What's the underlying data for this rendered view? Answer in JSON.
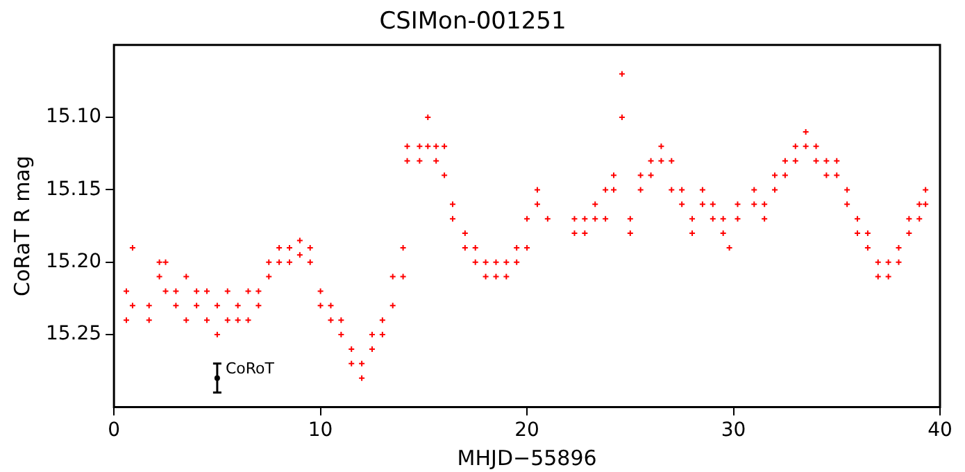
{
  "chart_data": {
    "type": "scatter",
    "title": "CSIMon-001251",
    "xlabel": "MHJD−55896",
    "ylabel": "CoRaT R mag",
    "xlim": [
      0,
      40
    ],
    "xticks": [
      0,
      10,
      20,
      30,
      40
    ],
    "ylim": [
      15.3,
      15.05
    ],
    "yticks": [
      {
        "value": 15.1,
        "label": "15.10"
      },
      {
        "value": 15.15,
        "label": "15.15"
      },
      {
        "value": 15.2,
        "label": "15.20"
      },
      {
        "value": 15.25,
        "label": "15.25"
      }
    ],
    "marker": "cross",
    "grid": false,
    "legend": false,
    "series": [
      {
        "color": "#ff0000",
        "x": [
          0.6,
          0.6,
          0.9,
          0.9,
          1.7,
          1.7,
          2.2,
          2.2,
          2.5,
          2.5,
          3,
          3,
          3.5,
          3.5,
          4,
          4,
          4.5,
          4.5,
          5,
          5,
          5.5,
          5.5,
          6,
          6,
          6.5,
          6.5,
          7,
          7,
          7.5,
          7.5,
          8,
          8,
          8.5,
          8.5,
          9,
          9,
          9.5,
          9.5,
          10,
          10,
          10.5,
          10.5,
          11,
          11,
          11.5,
          11.5,
          12,
          12,
          12.5,
          12.5,
          13,
          13,
          13.5,
          13.5,
          14,
          14,
          14.2,
          14.2,
          14.8,
          14.8,
          15.2,
          15.2,
          15.6,
          15.6,
          16,
          16,
          16.4,
          16.4,
          17,
          17,
          17.5,
          17.5,
          18,
          18,
          18.5,
          18.5,
          19,
          19,
          19.5,
          19.5,
          20,
          20,
          20.5,
          20.5,
          21,
          22.3,
          22.3,
          22.8,
          22.8,
          23.3,
          23.3,
          23.8,
          23.8,
          24.2,
          24.2,
          24.6,
          24.6,
          25,
          25,
          25.5,
          25.5,
          26,
          26,
          26.5,
          26.5,
          27,
          27,
          27.5,
          27.5,
          28,
          28,
          28.5,
          28.5,
          29,
          29,
          29.5,
          29.5,
          29.8,
          30.2,
          30.2,
          31,
          31,
          31.5,
          31.5,
          32,
          32,
          32.5,
          32.5,
          33,
          33,
          33.5,
          33.5,
          34,
          34,
          34.5,
          34.5,
          35,
          35,
          35.5,
          35.5,
          36,
          36,
          36.5,
          36.5,
          37,
          37,
          37.5,
          37.5,
          38,
          38,
          38.5,
          38.5,
          39,
          39,
          39.3,
          39.3
        ],
        "values": [
          15.22,
          15.24,
          15.19,
          15.23,
          15.23,
          15.24,
          15.21,
          15.2,
          15.2,
          15.22,
          15.22,
          15.23,
          15.21,
          15.24,
          15.23,
          15.22,
          15.24,
          15.22,
          15.23,
          15.25,
          15.24,
          15.22,
          15.23,
          15.24,
          15.22,
          15.24,
          15.22,
          15.23,
          15.2,
          15.21,
          15.2,
          15.19,
          15.19,
          15.2,
          15.185,
          15.195,
          15.2,
          15.19,
          15.22,
          15.23,
          15.24,
          15.23,
          15.25,
          15.24,
          15.26,
          15.27,
          15.28,
          15.27,
          15.26,
          15.25,
          15.25,
          15.24,
          15.23,
          15.21,
          15.21,
          15.19,
          15.13,
          15.12,
          15.12,
          15.13,
          15.1,
          15.12,
          15.12,
          15.13,
          15.12,
          15.14,
          15.16,
          15.17,
          15.18,
          15.19,
          15.19,
          15.2,
          15.2,
          15.21,
          15.21,
          15.2,
          15.21,
          15.2,
          15.2,
          15.19,
          15.19,
          15.17,
          15.16,
          15.15,
          15.17,
          15.18,
          15.17,
          15.17,
          15.18,
          15.16,
          15.17,
          15.15,
          15.17,
          15.15,
          15.14,
          15.07,
          15.1,
          15.17,
          15.18,
          15.14,
          15.15,
          15.13,
          15.14,
          15.12,
          15.13,
          15.13,
          15.15,
          15.15,
          15.16,
          15.17,
          15.18,
          15.15,
          15.16,
          15.16,
          15.17,
          15.18,
          15.17,
          15.19,
          15.16,
          15.17,
          15.16,
          15.15,
          15.17,
          15.16,
          15.15,
          15.14,
          15.13,
          15.14,
          15.12,
          15.13,
          15.11,
          15.12,
          15.12,
          15.13,
          15.13,
          15.14,
          15.14,
          15.13,
          15.15,
          15.16,
          15.17,
          15.18,
          15.19,
          15.18,
          15.2,
          15.21,
          15.21,
          15.2,
          15.2,
          15.19,
          15.18,
          15.17,
          15.16,
          15.17,
          15.15,
          15.16
        ]
      },
      {
        "name": "CoRoT",
        "color": "#000000",
        "marker": "circle",
        "x": [
          5
        ],
        "values": [
          15.28
        ],
        "errors": [
          0.01
        ]
      }
    ]
  }
}
